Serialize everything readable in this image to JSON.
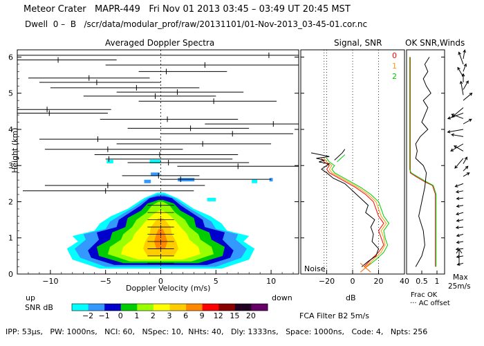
{
  "header": {
    "line1": "Meteor Crater   MAPR-449   Fri Nov 01 2013 03:45 – 03:49 UT 20:45 MST",
    "line2": "Dwell  0 –  B   /scr/data/modular_prof/raw/20131101/01-Nov-2013_03-45-01.cor.nc"
  },
  "panels": {
    "spectra_title": "Averaged Doppler Spectra",
    "signal_title": "Signal, SNR",
    "ok_title": "OK SNR,Winds",
    "ylabel": "Height (km)",
    "xlabel": "Doppler Velocity (m/s)",
    "up_label": "up",
    "down_label": "down",
    "db_label": "dB",
    "noise_label": "Noise",
    "frac_ok_label": "Frac OK",
    "ac_offset_label": "··· AC offset",
    "max_label": "Max",
    "max_value": "25m/s",
    "filter_label": "FCA Filter B2   5m/s"
  },
  "legend_signal": [
    {
      "label": "0",
      "color": "#ff0000"
    },
    {
      "label": "1",
      "color": "#ff9900"
    },
    {
      "label": "2",
      "color": "#00cc00"
    }
  ],
  "colorbar": {
    "title": "SNR dB",
    "ticks": [
      "−2",
      "−1",
      "0",
      "1",
      "2",
      "3",
      "6",
      "9",
      "12",
      "15",
      "20"
    ],
    "colors": [
      "#00ffff",
      "#3399ff",
      "#0000cc",
      "#00cc00",
      "#99ff00",
      "#ffff00",
      "#ffcc00",
      "#ff8800",
      "#ff0000",
      "#880000",
      "#220022",
      "#660066"
    ]
  },
  "footer": "IPP: 53μs,   PW: 1000ns,   NCI: 60,   NSpec: 10,  NHts: 40,   Dly: 1333ns,   Space: 1000ns,   Code: 4,   Npts: 256",
  "chart_data": [
    {
      "type": "heatmap",
      "title": "Averaged Doppler Spectra",
      "xlabel": "Doppler Velocity (m/s)",
      "ylabel": "Height (km)",
      "xlim": [
        -13,
        12.5
      ],
      "ylim": [
        0,
        6.2
      ],
      "xticks": [
        -10,
        -5,
        0,
        5,
        10
      ],
      "yticks": [
        0,
        1,
        2,
        3,
        4,
        5,
        6
      ],
      "velocity_segments": [
        {
          "h": 6.05,
          "x1": -13,
          "x2": 12.5,
          "mark": 9.8
        },
        {
          "h": 5.92,
          "x1": -13,
          "x2": -4,
          "mark": -9.3
        },
        {
          "h": 5.78,
          "x1": -5,
          "x2": 12.5,
          "mark": 4
        },
        {
          "h": 5.6,
          "x1": -2,
          "x2": 6,
          "mark": 0.5
        },
        {
          "h": 5.42,
          "x1": -12,
          "x2": -1,
          "mark": -6.5
        },
        {
          "h": 5.3,
          "x1": -11,
          "x2": 0,
          "mark": -5.8
        },
        {
          "h": 5.15,
          "x1": -10,
          "x2": 3.5,
          "mark": -2.2
        },
        {
          "h": 5.03,
          "x1": -4,
          "x2": 7.5,
          "mark": 1.5
        },
        {
          "h": 4.92,
          "x1": -7,
          "x2": 5,
          "mark": -0.5
        },
        {
          "h": 4.78,
          "x1": -2,
          "x2": 10.5,
          "mark": 4.8
        },
        {
          "h": 4.55,
          "x1": -13,
          "x2": -4.5,
          "mark": -10.3
        },
        {
          "h": 4.45,
          "x1": -13,
          "x2": -4.8,
          "mark": -10.1
        },
        {
          "h": 4.28,
          "x1": -5.5,
          "x2": 7,
          "mark": 0.6
        },
        {
          "h": 4.15,
          "x1": 4,
          "x2": 12.5,
          "mark": 10.2
        },
        {
          "h": 4.03,
          "x1": -3,
          "x2": 8,
          "mark": 2.7
        },
        {
          "h": 3.88,
          "x1": 0,
          "x2": 12,
          "mark": 6.5
        },
        {
          "h": 3.73,
          "x1": -11,
          "x2": 0,
          "mark": -5.7
        },
        {
          "h": 3.6,
          "x1": -4,
          "x2": 10,
          "mark": 3.8
        },
        {
          "h": 3.45,
          "x1": -10.5,
          "x2": 2,
          "mark": -4.8
        },
        {
          "h": 3.3,
          "x1": -6,
          "x2": 7,
          "mark": -0.1
        },
        {
          "h": 3.18,
          "x1": -5,
          "x2": 6.5,
          "mark": -4.7
        },
        {
          "h": 3.08,
          "x1": -3,
          "x2": 8,
          "mark": 0.7
        },
        {
          "h": 2.98,
          "x1": 1.5,
          "x2": 12.5,
          "mark": 7
        },
        {
          "h": 2.72,
          "x1": -3.5,
          "x2": 3.5,
          "mark": -0.2
        },
        {
          "h": 2.62,
          "x1": 0,
          "x2": 10,
          "mark": 1.8
        },
        {
          "h": 2.45,
          "x1": -10.5,
          "x2": 4,
          "mark": -4.8
        },
        {
          "h": 2.3,
          "x1": -12.5,
          "x2": 3,
          "mark": -5
        }
      ],
      "colorbar_label": "SNR dB"
    },
    {
      "type": "line",
      "title": "Signal, SNR",
      "xlabel": "dB",
      "ylabel": "Height (km)",
      "xlim": [
        -40,
        40
      ],
      "ylim": [
        0,
        6.2
      ],
      "xticks": [
        -20,
        0,
        20,
        40
      ],
      "noise_level_db": -22,
      "series": [
        {
          "name": "0",
          "color": "#ff0000",
          "x": [
            9,
            14,
            20,
            24,
            22,
            20,
            24,
            20,
            18,
            16,
            10,
            2,
            -8,
            -18,
            -20,
            -18,
            -22,
            -24
          ],
          "y": [
            0.2,
            0.4,
            0.6,
            0.8,
            1.0,
            1.2,
            1.4,
            1.6,
            1.8,
            2.0,
            2.2,
            2.4,
            2.6,
            2.8,
            2.9,
            3.0,
            3.1,
            3.2
          ]
        },
        {
          "name": "1",
          "color": "#ff9900",
          "x": [
            10,
            16,
            22,
            25,
            24,
            22,
            26,
            22,
            20,
            18,
            12,
            4,
            -6,
            -16,
            -18,
            -16,
            -20,
            -22
          ],
          "y": [
            0.2,
            0.4,
            0.6,
            0.8,
            1.0,
            1.2,
            1.4,
            1.6,
            1.8,
            2.0,
            2.2,
            2.4,
            2.6,
            2.8,
            2.9,
            3.0,
            3.1,
            3.2
          ]
        },
        {
          "name": "2",
          "color": "#00cc00",
          "x": [
            11,
            18,
            24,
            27,
            25,
            24,
            28,
            24,
            22,
            20,
            14,
            6,
            -4,
            -14,
            -16,
            -14,
            -18,
            -20
          ],
          "y": [
            0.2,
            0.4,
            0.6,
            0.8,
            1.0,
            1.2,
            1.4,
            1.6,
            1.8,
            2.0,
            2.2,
            2.4,
            2.6,
            2.8,
            2.9,
            3.0,
            3.1,
            3.2
          ]
        },
        {
          "name": "signal",
          "color": "#000000",
          "x": [
            7,
            12,
            18,
            20,
            15,
            16,
            14,
            17,
            10,
            12,
            6,
            0,
            -6,
            -15,
            -20,
            -24,
            -20,
            -18,
            -26,
            -22,
            -28,
            -18,
            -32
          ],
          "y": [
            0.2,
            0.35,
            0.5,
            0.7,
            0.9,
            1.1,
            1.3,
            1.5,
            1.7,
            1.9,
            2.1,
            2.3,
            2.5,
            2.65,
            2.8,
            2.9,
            3.0,
            3.05,
            3.1,
            3.15,
            3.2,
            3.25,
            3.35
          ]
        }
      ]
    },
    {
      "type": "line",
      "title": "OK SNR,Winds",
      "xlabel": "Frac OK",
      "xlim": [
        0,
        1.25
      ],
      "ylim": [
        0,
        6.2
      ],
      "xticks": [
        0.5,
        1
      ],
      "xtick_labels": [
        "0.5",
        "1"
      ],
      "series": [
        {
          "name": "frac_ok_0",
          "color": "#ff0000",
          "x": [
            0.12,
            0.12,
            0.12,
            0.12,
            0.12,
            0.12,
            0.12,
            0.3,
            0.6,
            0.85,
            0.95,
            0.95,
            0.95,
            0.95
          ],
          "y": [
            6.0,
            5.0,
            4.0,
            3.5,
            3.0,
            2.9,
            2.8,
            2.7,
            2.55,
            2.45,
            2.2,
            1.5,
            0.8,
            0.2
          ]
        },
        {
          "name": "frac_ok_2",
          "color": "#00cc00",
          "x": [
            0.1,
            0.1,
            0.1,
            0.1,
            0.1,
            0.1,
            0.15,
            0.35,
            0.65,
            0.88,
            0.97,
            0.97,
            0.97,
            0.97
          ],
          "y": [
            6.0,
            5.0,
            4.0,
            3.5,
            3.0,
            2.9,
            2.8,
            2.7,
            2.55,
            2.45,
            2.2,
            1.5,
            0.8,
            0.2
          ]
        },
        {
          "name": "ac_offset",
          "color": "#000000",
          "x": [
            0.75,
            0.6,
            0.7,
            0.55,
            0.65,
            0.8,
            0.55,
            0.7,
            0.6,
            0.5,
            0.7,
            0.45,
            0.3,
            0.35,
            0.3,
            0.55,
            0.65,
            0.6,
            0.5,
            0.4,
            0.55,
            0.6,
            0.5,
            0.3
          ],
          "y": [
            6.0,
            5.8,
            5.6,
            5.4,
            5.2,
            5.0,
            4.8,
            4.6,
            4.4,
            4.2,
            4.0,
            3.8,
            3.6,
            3.4,
            3.2,
            3.0,
            2.8,
            2.4,
            2.0,
            1.6,
            1.2,
            0.8,
            0.5,
            0.2
          ]
        }
      ],
      "wind_barbs": {
        "heights": [
          5.95,
          5.8,
          5.6,
          5.45,
          5.3,
          5.1,
          4.95,
          4.8,
          4.6,
          4.45,
          4.3,
          4.15,
          4.0,
          3.8,
          3.6,
          3.4,
          3.2,
          3.05,
          2.85,
          2.7,
          2.5,
          2.3,
          2.1,
          1.9,
          1.7,
          1.5,
          1.3,
          1.1,
          0.9,
          0.7,
          0.5,
          0.3
        ],
        "dir_deg": [
          80,
          110,
          70,
          120,
          90,
          60,
          100,
          40,
          220,
          200,
          160,
          30,
          190,
          170,
          210,
          150,
          230,
          60,
          45,
          30,
          200,
          190,
          185,
          190,
          195,
          190,
          185,
          195,
          190,
          185,
          190,
          195
        ],
        "speed_ms": [
          10,
          18,
          8,
          14,
          9,
          12,
          20,
          15,
          22,
          25,
          17,
          11,
          24,
          16,
          21,
          13,
          18,
          7,
          5,
          6,
          9,
          6,
          5,
          5,
          6,
          5,
          6,
          5,
          5,
          6,
          5,
          4
        ]
      }
    }
  ]
}
